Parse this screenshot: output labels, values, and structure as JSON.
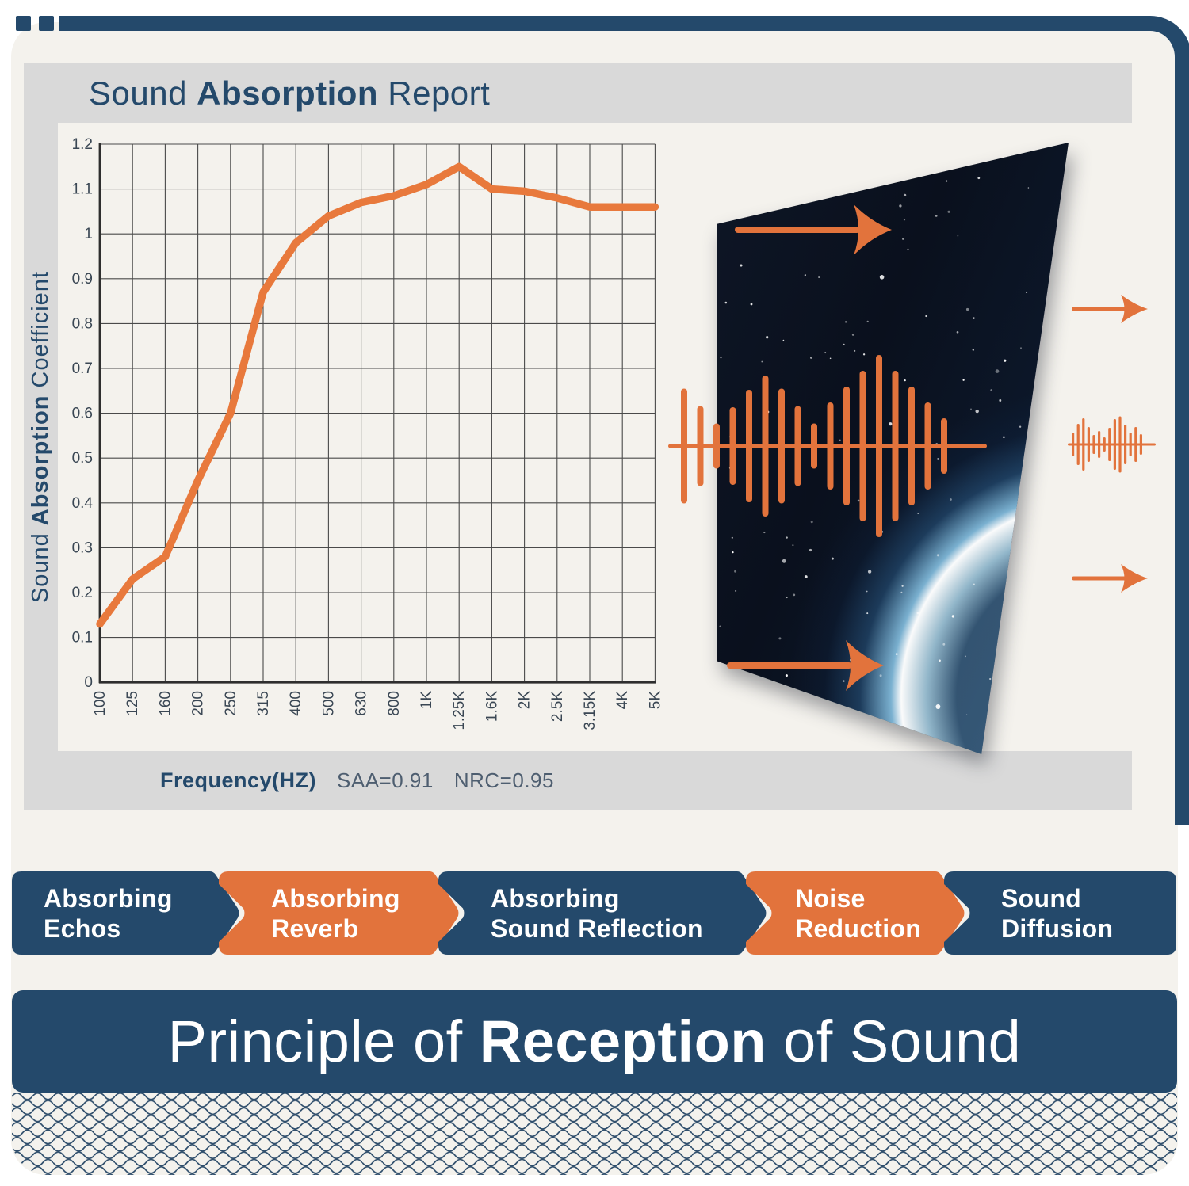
{
  "colors": {
    "navy": "#24496B",
    "orange": "#E2733C",
    "orange_line": "#E8793C",
    "gray_band": "#D9D9D9",
    "cream": "#F4F2ED",
    "grid": "#4A4A4A",
    "axis": "#2E2E2E",
    "tick_text": "#3A4754",
    "stat_text": "#4E5E70",
    "white": "#FFFFFF"
  },
  "report": {
    "title": {
      "pre": "Sound ",
      "bold": "Absorption",
      "post": " Report"
    },
    "y_axis_label": {
      "pre": "Sound ",
      "bold": "Absorption",
      "post": " Coefficient"
    },
    "x_axis_label": "Frequency(HZ)",
    "saa": "SAA=0.91",
    "nrc": "NRC=0.95"
  },
  "chart_data": {
    "type": "line",
    "title": "Sound Absorption Report",
    "xlabel": "Frequency(HZ)",
    "ylabel": "Sound Absorption Coefficient",
    "categories": [
      "100",
      "125",
      "160",
      "200",
      "250",
      "315",
      "400",
      "500",
      "630",
      "800",
      "1K",
      "1.25K",
      "1.6K",
      "2K",
      "2.5K",
      "3.15K",
      "4K",
      "5K"
    ],
    "values": [
      0.13,
      0.23,
      0.28,
      0.45,
      0.6,
      0.87,
      0.98,
      1.04,
      1.07,
      1.085,
      1.11,
      1.15,
      1.1,
      1.095,
      1.08,
      1.06,
      1.06,
      1.06
    ],
    "ytick_labels": [
      "0",
      "0.1",
      "0.2",
      "0.3",
      "0.4",
      "0.5",
      "0.6",
      "0.7",
      "0.8",
      "0.9",
      "1",
      "1.1",
      "1.2"
    ],
    "ylim": [
      0,
      1.2
    ],
    "grid": true,
    "legend_position": "none",
    "line_color": "#E8793C",
    "annotations": "SAA=0.91 NRC=0.95"
  },
  "icons": {
    "sound_wave": "sound-wave-icon",
    "sound_wave_out": "sound-wave-out-icon",
    "arrow_right": "arrow-right-icon"
  },
  "feature_banners": [
    {
      "line1": "Absorbing",
      "line2": "Echos",
      "color": "navy"
    },
    {
      "line1": "Absorbing",
      "line2": "Reverb",
      "color": "orange"
    },
    {
      "line1": "Absorbing",
      "line2": "Sound Reflection",
      "color": "navy"
    },
    {
      "line1": "Noise",
      "line2": "Reduction",
      "color": "orange"
    },
    {
      "line1": "Sound",
      "line2": "Diffusion",
      "color": "navy"
    }
  ],
  "footer": {
    "title": {
      "pre": "Principle of ",
      "bold": "Reception",
      "post": " of Sound"
    }
  }
}
